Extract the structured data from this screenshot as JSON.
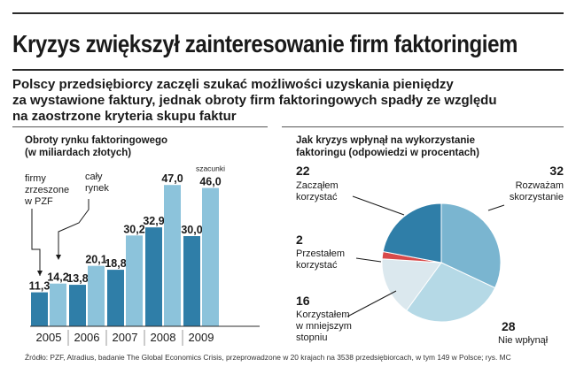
{
  "title": "Kryzys zwiększył zainteresowanie firm faktoringiem",
  "subtitle": [
    "Polscy przedsiębiorcy zaczęli szukać możliwości uzyskania pieniędzy",
    "za wystawione faktury, jednak obroty firm faktoringowych spadły ze względu",
    "na zaostrzone kryteria skupu faktur"
  ],
  "colors": {
    "bar_pzf": "#2f7ea8",
    "bar_market": "#8cc3db",
    "pie_started": "#2f7ea8",
    "pie_considering": "#7ab5d0",
    "pie_no_effect": "#b5d9e6",
    "pie_less": "#dbe8ee",
    "pie_stopped": "#d84a4a",
    "text": "#1a1a1a"
  },
  "chart_data": [
    {
      "type": "bar",
      "title_lines": [
        "Obroty rynku faktoringowego",
        "(w miliardach złotych)"
      ],
      "categories": [
        "2005",
        "2006",
        "2007",
        "2008",
        "2009"
      ],
      "series": [
        {
          "name": "firmy zrzeszone w PZF",
          "name_lines": [
            "firmy",
            "zrzeszone",
            "w PZF"
          ],
          "values": [
            11.3,
            13.8,
            18.8,
            32.9,
            30.0
          ],
          "labels": [
            "11,3",
            "13,8",
            "18,8",
            "32,9",
            "30,0"
          ]
        },
        {
          "name": "cały rynek",
          "name_lines": [
            "cały",
            "rynek"
          ],
          "values": [
            14.2,
            20.1,
            30.2,
            47.0,
            46.0
          ],
          "labels": [
            "14,2",
            "20,1",
            "30,2",
            "47,0",
            "46,0"
          ]
        }
      ],
      "annotation": "szacunki",
      "ylim": [
        0,
        50
      ],
      "grid": false
    },
    {
      "type": "pie",
      "title_lines": [
        "Jak kryzys wpłynął na wykorzystanie",
        "faktoringu (odpowiedzi w procentach)"
      ],
      "slices": [
        {
          "label_lines": [
            "Rozważam",
            "skorzystanie"
          ],
          "value": 32
        },
        {
          "label_lines": [
            "Nie wpłynął"
          ],
          "value": 28
        },
        {
          "label_lines": [
            "Korzystałem",
            "w mniejszym",
            "stopniu"
          ],
          "value": 16
        },
        {
          "label_lines": [
            "Przestałem",
            "korzystać"
          ],
          "value": 2
        },
        {
          "label_lines": [
            "Zacząłem",
            "korzystać"
          ],
          "value": 22
        }
      ]
    }
  ],
  "source": "Źródło: PZF, Atradius, badanie The Global Economics Crisis, przeprowadzone w 20 krajach na 3538 przedsiębiorcach, w tym 149 w Polsce; rys. MC"
}
